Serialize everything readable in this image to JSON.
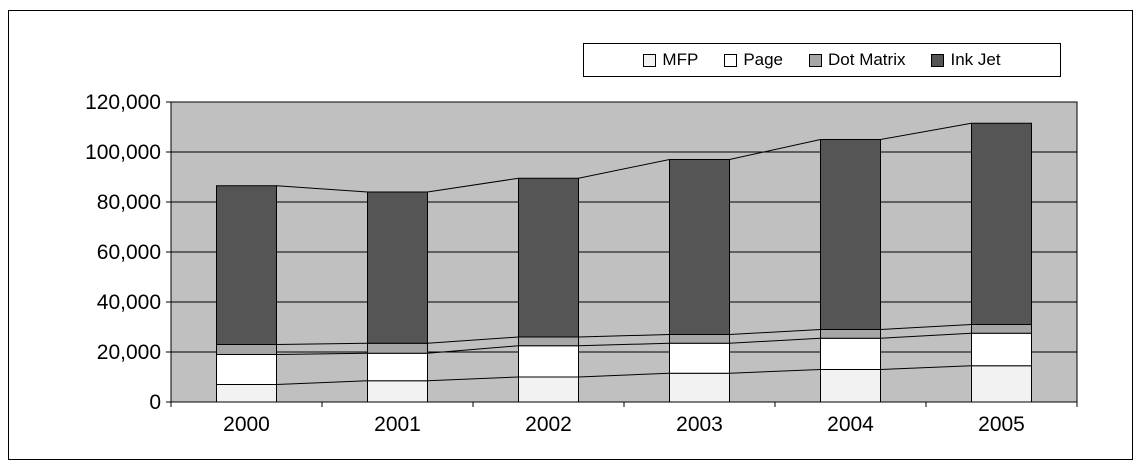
{
  "chart_data": {
    "type": "bar",
    "stacked": true,
    "title": "",
    "xlabel": "",
    "ylabel": "",
    "categories": [
      "2000",
      "2001",
      "2002",
      "2003",
      "2004",
      "2005"
    ],
    "series": [
      {
        "name": "MFP",
        "values": [
          7000,
          8500,
          10000,
          11500,
          13000,
          14500
        ],
        "color": "#f2f2f2"
      },
      {
        "name": "Page",
        "values": [
          12000,
          11000,
          12500,
          12000,
          12500,
          13000
        ],
        "color": "#ffffff"
      },
      {
        "name": "Dot Matrix",
        "values": [
          4000,
          4000,
          3500,
          3500,
          3500,
          3500
        ],
        "color": "#a6a6a6"
      },
      {
        "name": "Ink Jet",
        "values": [
          63500,
          60500,
          63500,
          70000,
          76000,
          80500
        ],
        "color": "#555555"
      }
    ],
    "ylim": [
      0,
      120000
    ],
    "yticks": [
      "0",
      "20,000",
      "40,000",
      "60,000",
      "80,000",
      "100,000",
      "120,000"
    ],
    "ytick_values": [
      0,
      20000,
      40000,
      60000,
      80000,
      100000,
      120000
    ],
    "series_lines": true,
    "grid": true,
    "plot_background": "#c0c0c0",
    "legend_position": "top-right"
  }
}
